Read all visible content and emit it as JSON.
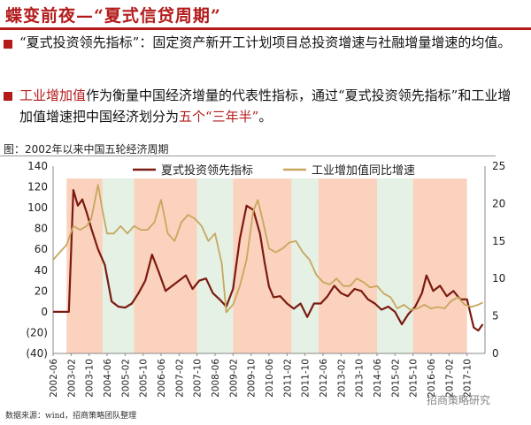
{
  "title": "蝶变前夜—“夏式信贷周期”",
  "bullets": [
    {
      "segments": [
        {
          "text": "“夏式投资领先指标”：固定资产新开工计划项目总投资增速与社融增量增速的均值。",
          "red": false
        }
      ]
    },
    {
      "segments": [
        {
          "text": "工业增加值",
          "red": true
        },
        {
          "text": "作为衡量中国经济增量的代表性指标，通过“夏式投资领先指标”和工业增加值增速把中国经济划分为",
          "red": false
        },
        {
          "text": "五个“三年半”",
          "red": true
        },
        {
          "text": "。",
          "red": false
        }
      ]
    }
  ],
  "chart_caption": "图：2002年以来中国五轮经济周期",
  "source": "数据来源：wind，招商策略团队整理",
  "watermark": "招商策略研究",
  "colors": {
    "series1": "#7b1a10",
    "series2": "#c7a75e",
    "shade_orange": "#fbd2bd",
    "shade_green": "#e4f1e4",
    "accent": "#b31b1b"
  },
  "chart_data": {
    "type": "line",
    "x_ticks": [
      "2002-06",
      "2003-02",
      "2003-10",
      "2004-06",
      "2005-02",
      "2005-10",
      "2006-06",
      "2007-02",
      "2007-10",
      "2008-06",
      "2009-02",
      "2009-10",
      "2010-06",
      "2011-02",
      "2011-10",
      "2012-06",
      "2013-02",
      "2013-10",
      "2014-06",
      "2015-02",
      "2015-10",
      "2016-06",
      "2017-02",
      "2017-10"
    ],
    "y_left": {
      "ticks": [
        140,
        120,
        100,
        80,
        60,
        40,
        20,
        0,
        -20,
        -40
      ],
      "tick_labels": [
        "140",
        "120",
        "100",
        "80",
        "60",
        "40",
        "20",
        "0",
        "(20)",
        "(40)"
      ],
      "range": [
        -40,
        140
      ]
    },
    "y_right": {
      "ticks": [
        25,
        20,
        15,
        10,
        5,
        0
      ],
      "tick_labels": [
        "25",
        "20",
        "15",
        "10",
        "5",
        "0"
      ],
      "range": [
        0,
        25
      ]
    },
    "legend_position": "top",
    "phase_bands": [
      {
        "start": "2002-12",
        "end": "2004-04",
        "color": "orange"
      },
      {
        "start": "2004-04",
        "end": "2005-06",
        "color": "green"
      },
      {
        "start": "2005-06",
        "end": "2007-10",
        "color": "orange"
      },
      {
        "start": "2007-10",
        "end": "2009-02",
        "color": "green"
      },
      {
        "start": "2009-02",
        "end": "2011-04",
        "color": "orange"
      },
      {
        "start": "2011-04",
        "end": "2012-04",
        "color": "green"
      },
      {
        "start": "2012-04",
        "end": "2014-06",
        "color": "orange"
      },
      {
        "start": "2014-06",
        "end": "2015-10",
        "color": "green"
      },
      {
        "start": "2015-10",
        "end": "2017-10",
        "color": "orange"
      }
    ],
    "series": [
      {
        "name": "夏式投资领先指标",
        "axis": "left",
        "points": [
          [
            "2002-06",
            0
          ],
          [
            "2002-12",
            0
          ],
          [
            "2003-01",
            0
          ],
          [
            "2003-03",
            117
          ],
          [
            "2003-05",
            102
          ],
          [
            "2003-07",
            108
          ],
          [
            "2003-09",
            95
          ],
          [
            "2003-11",
            80
          ],
          [
            "2004-02",
            60
          ],
          [
            "2004-05",
            45
          ],
          [
            "2004-08",
            10
          ],
          [
            "2004-11",
            5
          ],
          [
            "2005-02",
            4
          ],
          [
            "2005-05",
            8
          ],
          [
            "2005-08",
            18
          ],
          [
            "2005-11",
            30
          ],
          [
            "2006-02",
            55
          ],
          [
            "2006-05",
            38
          ],
          [
            "2006-08",
            20
          ],
          [
            "2006-11",
            25
          ],
          [
            "2007-02",
            30
          ],
          [
            "2007-05",
            35
          ],
          [
            "2007-08",
            22
          ],
          [
            "2007-11",
            30
          ],
          [
            "2008-02",
            32
          ],
          [
            "2008-05",
            18
          ],
          [
            "2008-08",
            12
          ],
          [
            "2008-11",
            5
          ],
          [
            "2009-02",
            22
          ],
          [
            "2009-05",
            70
          ],
          [
            "2009-08",
            102
          ],
          [
            "2009-11",
            98
          ],
          [
            "2010-02",
            75
          ],
          [
            "2010-04",
            48
          ],
          [
            "2010-06",
            24
          ],
          [
            "2010-08",
            14
          ],
          [
            "2010-11",
            15
          ],
          [
            "2011-02",
            8
          ],
          [
            "2011-05",
            3
          ],
          [
            "2011-08",
            8
          ],
          [
            "2011-11",
            -5
          ],
          [
            "2012-02",
            8
          ],
          [
            "2012-05",
            8
          ],
          [
            "2012-08",
            15
          ],
          [
            "2012-11",
            25
          ],
          [
            "2013-02",
            18
          ],
          [
            "2013-05",
            15
          ],
          [
            "2013-08",
            22
          ],
          [
            "2013-11",
            20
          ],
          [
            "2014-02",
            12
          ],
          [
            "2014-05",
            8
          ],
          [
            "2014-08",
            2
          ],
          [
            "2014-11",
            5
          ],
          [
            "2015-02",
            0
          ],
          [
            "2015-05",
            -12
          ],
          [
            "2015-08",
            -2
          ],
          [
            "2015-11",
            5
          ],
          [
            "2016-02",
            18
          ],
          [
            "2016-04",
            35
          ],
          [
            "2016-07",
            20
          ],
          [
            "2016-10",
            25
          ],
          [
            "2017-01",
            15
          ],
          [
            "2017-04",
            20
          ],
          [
            "2017-07",
            12
          ],
          [
            "2017-10",
            12
          ],
          [
            "2018-01",
            -15
          ],
          [
            "2018-03",
            -18
          ],
          [
            "2018-05",
            -12
          ]
        ]
      },
      {
        "name": "工业增加值同比增速",
        "axis": "right",
        "points": [
          [
            "2002-06",
            12.5
          ],
          [
            "2002-12",
            14.5
          ],
          [
            "2003-03",
            17
          ],
          [
            "2003-06",
            16.5
          ],
          [
            "2003-09",
            17
          ],
          [
            "2003-11",
            18
          ],
          [
            "2004-02",
            22.5
          ],
          [
            "2004-04",
            19
          ],
          [
            "2004-06",
            16
          ],
          [
            "2004-09",
            16
          ],
          [
            "2004-12",
            17
          ],
          [
            "2005-03",
            16
          ],
          [
            "2005-06",
            17
          ],
          [
            "2005-09",
            16.5
          ],
          [
            "2005-12",
            16.5
          ],
          [
            "2006-03",
            17.5
          ],
          [
            "2006-06",
            20.5
          ],
          [
            "2006-09",
            16
          ],
          [
            "2006-12",
            15
          ],
          [
            "2007-03",
            17.5
          ],
          [
            "2007-06",
            18.5
          ],
          [
            "2007-09",
            18
          ],
          [
            "2007-12",
            17
          ],
          [
            "2008-03",
            15
          ],
          [
            "2008-06",
            16
          ],
          [
            "2008-09",
            12
          ],
          [
            "2008-11",
            5.5
          ],
          [
            "2009-02",
            6.5
          ],
          [
            "2009-05",
            9
          ],
          [
            "2009-08",
            12.5
          ],
          [
            "2009-11",
            19
          ],
          [
            "2010-01",
            20.5
          ],
          [
            "2010-03",
            18
          ],
          [
            "2010-06",
            14
          ],
          [
            "2010-09",
            13.5
          ],
          [
            "2010-12",
            14
          ],
          [
            "2011-03",
            14.8
          ],
          [
            "2011-06",
            15
          ],
          [
            "2011-09",
            13.5
          ],
          [
            "2011-12",
            12.5
          ],
          [
            "2012-03",
            10.5
          ],
          [
            "2012-06",
            9.5
          ],
          [
            "2012-09",
            9.2
          ],
          [
            "2012-12",
            10
          ],
          [
            "2013-03",
            9
          ],
          [
            "2013-06",
            9
          ],
          [
            "2013-09",
            10
          ],
          [
            "2013-12",
            9.5
          ],
          [
            "2014-03",
            8.8
          ],
          [
            "2014-06",
            9
          ],
          [
            "2014-09",
            8
          ],
          [
            "2014-12",
            7.5
          ],
          [
            "2015-03",
            6
          ],
          [
            "2015-06",
            6.5
          ],
          [
            "2015-09",
            5.8
          ],
          [
            "2015-12",
            6
          ],
          [
            "2016-03",
            6.5
          ],
          [
            "2016-06",
            6
          ],
          [
            "2016-09",
            6.2
          ],
          [
            "2016-12",
            6
          ],
          [
            "2017-03",
            7
          ],
          [
            "2017-06",
            7.5
          ],
          [
            "2017-09",
            6.5
          ],
          [
            "2017-12",
            6.2
          ],
          [
            "2018-03",
            6.5
          ],
          [
            "2018-05",
            6.8
          ]
        ]
      }
    ]
  }
}
